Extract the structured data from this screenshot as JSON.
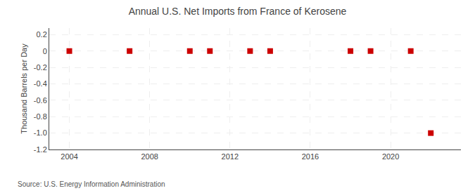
{
  "chart_data": {
    "type": "scatter",
    "title": "Annual U.S. Net Imports from France of Kerosene",
    "ylabel": "Thousand Barrels per Day",
    "source": "Source: U.S. Energy Information Administration",
    "x": [
      2004,
      2007,
      2010,
      2011,
      2013,
      2014,
      2018,
      2019,
      2021,
      2022
    ],
    "values": [
      0,
      0,
      0,
      0,
      0,
      0,
      0,
      0,
      0,
      -1.0
    ],
    "color": "#cc0000",
    "marker": "square",
    "xlim": [
      2003.0,
      2023.5
    ],
    "xticks": [
      2004,
      2008,
      2012,
      2016,
      2020
    ],
    "ylim": [
      -1.2,
      0.28
    ],
    "yticks": [
      0.2,
      0,
      -0.2,
      -0.4,
      -0.6,
      -0.8,
      {
        "value": -1.0,
        "label": "-1.0"
      },
      -1.2
    ],
    "grid": true
  }
}
